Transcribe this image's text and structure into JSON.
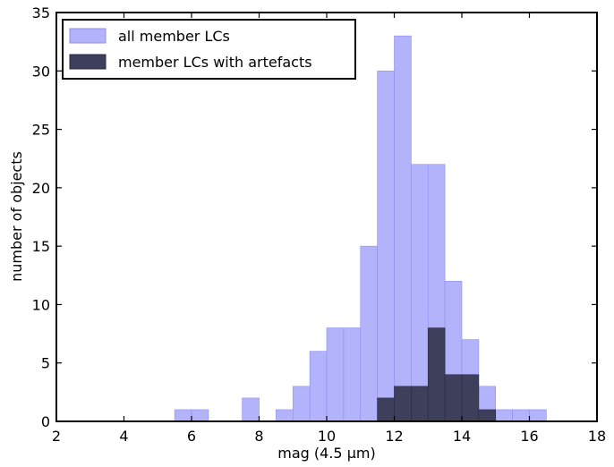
{
  "chart_data": {
    "type": "bar",
    "subtype": "overlaid-histogram",
    "xlabel": "mag (4.5 μm)",
    "ylabel": "number of objects",
    "xlim": [
      2,
      18
    ],
    "ylim": [
      0,
      35
    ],
    "xticks": [
      2,
      4,
      6,
      8,
      10,
      12,
      14,
      16,
      18
    ],
    "yticks": [
      0,
      5,
      10,
      15,
      20,
      25,
      30,
      35
    ],
    "grid": false,
    "legend_placement": "top-left",
    "bin_edges": [
      5.5,
      6.0,
      6.5,
      7.0,
      7.5,
      8.0,
      8.5,
      9.0,
      9.5,
      10.0,
      10.5,
      11.0,
      11.5,
      12.0,
      12.5,
      13.0,
      13.5,
      14.0,
      14.5,
      15.0,
      15.5,
      16.0,
      16.5
    ],
    "series": [
      {
        "name": "all member LCs",
        "color": "#b3b3fb",
        "edge_color": "#8d8df0",
        "values": [
          1,
          1,
          0,
          0,
          2,
          0,
          1,
          3,
          6,
          8,
          8,
          15,
          30,
          33,
          22,
          22,
          12,
          7,
          3,
          1,
          1,
          1
        ]
      },
      {
        "name": "member LCs with artefacts",
        "color": "#3e3f5b",
        "edge_color": "#2a2a44",
        "values": [
          0,
          0,
          0,
          0,
          0,
          0,
          0,
          0,
          0,
          0,
          0,
          0,
          2,
          3,
          3,
          8,
          4,
          4,
          1,
          0,
          0,
          0
        ]
      }
    ]
  }
}
